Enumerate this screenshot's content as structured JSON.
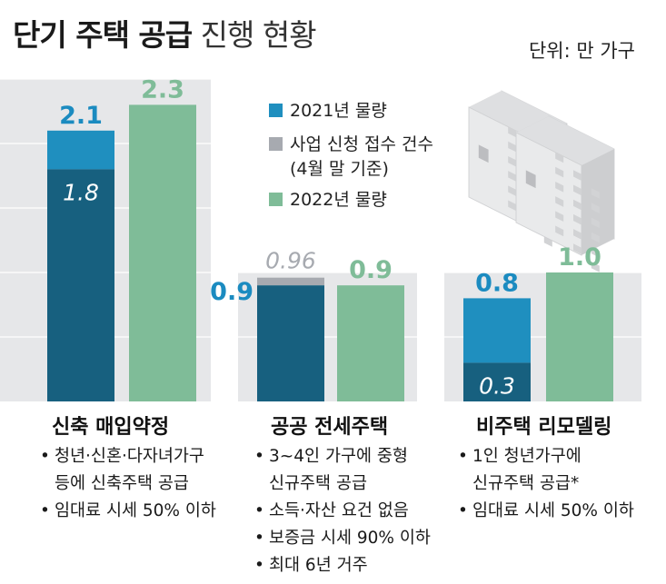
{
  "header": {
    "title_bold": "단기 주택 공급",
    "title_light": "진행 현황",
    "unit": "단위: 만 가구"
  },
  "legend": [
    {
      "label": "2021년 물량",
      "color": "#1f8fbf"
    },
    {
      "label": "사업 신청 접수 건수",
      "label2": "(4월 말 기준)",
      "color": "#a7aab0"
    },
    {
      "label": "2022년 물량",
      "color": "#7fbc98"
    }
  ],
  "colors": {
    "dark_base": "#17607f",
    "mid_blue": "#1f8fbf",
    "applications_gray": "#a7aab0",
    "green": "#7fbc98",
    "panel_bg": "#e6e7e9",
    "value_blue": "#1b8bc0",
    "value_green": "#7fbc98"
  },
  "chart_data": {
    "type": "bar",
    "ylim": [
      0,
      2.5
    ],
    "panels": [
      {
        "category": "신축 매입약정",
        "bars": [
          {
            "series": "2021년 물량",
            "total": 2.1,
            "total_label": "2.1",
            "base": 1.8,
            "base_label": "1.8"
          },
          {
            "series": "2022년 물량",
            "total": 2.3,
            "total_label": "2.3"
          }
        ]
      },
      {
        "category": "공공 전세주택",
        "bars": [
          {
            "series": "2021년 물량",
            "total": 0.9,
            "total_label": "0.9",
            "applications": 0.96,
            "applications_label": "0.96"
          },
          {
            "series": "2022년 물량",
            "total": 0.9,
            "total_label": "0.9"
          }
        ]
      },
      {
        "category": "비주택 리모델링",
        "bars": [
          {
            "series": "2021년 물량",
            "total": 0.8,
            "total_label": "0.8",
            "base": 0.3,
            "base_label": "0.3"
          },
          {
            "series": "2022년 물량",
            "total": 1.0,
            "total_label": "1.0"
          }
        ]
      }
    ]
  },
  "notes": [
    [
      "청년·신혼·다자녀가구",
      "등에 신축주택 공급",
      "임대료 시세 50% 이하"
    ],
    [
      "3~4인 가구에 중형",
      "신규주택 공급",
      "소득·자산 요건 없음",
      "보증금 시세 90% 이하",
      "최대 6년 거주"
    ],
    [
      "1인 청년가구에",
      "신규주택 공급*",
      "임대료 시세 50% 이하"
    ]
  ]
}
